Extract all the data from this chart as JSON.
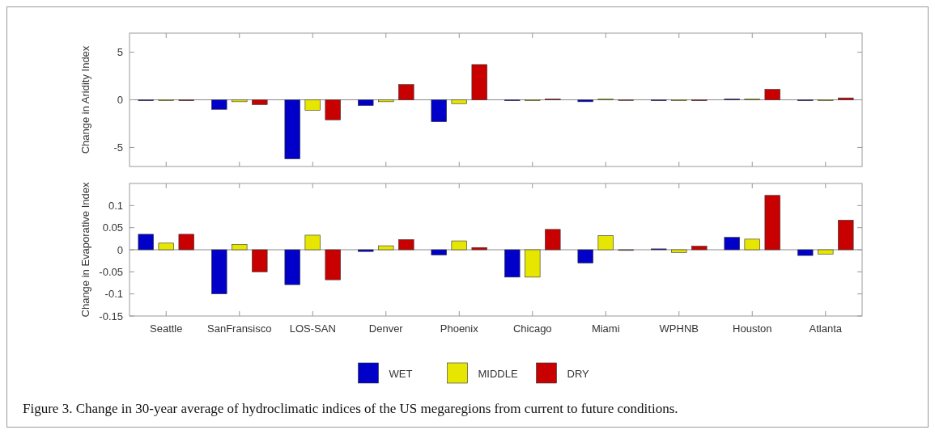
{
  "chart_data": [
    {
      "type": "bar",
      "ylabel": "Change in Aridity Index",
      "categories": [
        null,
        null,
        null,
        null,
        null,
        null,
        null,
        null,
        null,
        null
      ],
      "series": [
        {
          "color": "#0000c8",
          "values": [
            -0.1,
            -1.0,
            -6.2,
            -0.6,
            -2.3,
            -0.1,
            -0.2,
            -0.1,
            0.1,
            -0.1
          ]
        },
        {
          "color": "#e6e600",
          "values": [
            -0.1,
            -0.2,
            -1.1,
            -0.2,
            -0.4,
            -0.1,
            0.1,
            -0.1,
            0.1,
            -0.1
          ]
        },
        {
          "color": "#c80000",
          "values": [
            -0.1,
            -0.5,
            -2.1,
            1.6,
            3.7,
            0.1,
            0,
            -0.1,
            1.1,
            0.2
          ]
        }
      ],
      "ylim": [
        -7,
        7
      ],
      "yticks": [
        -5,
        0,
        5
      ],
      "tick_labels": "y",
      "grid": false,
      "legend": false,
      "ref_lines": [
        {
          "axis": "y",
          "value": 0,
          "color": "#888888"
        }
      ]
    },
    {
      "type": "bar",
      "ylabel": "Change in Evaporative Index",
      "categories": [
        "Seattle",
        "SanFransisco",
        "LOS-SAN",
        "Denver",
        "Phoenix",
        "Chicago",
        "Miami",
        "WPHNB",
        "Houston",
        "Atlanta"
      ],
      "series": [
        {
          "name": "WET",
          "color": "#0000c8",
          "values": [
            0.035,
            -0.1,
            -0.079,
            -0.004,
            -0.012,
            -0.062,
            -0.03,
            0.002,
            0.028,
            -0.013
          ]
        },
        {
          "name": "MIDDLE",
          "color": "#e6e600",
          "values": [
            0.015,
            0.012,
            0.033,
            0.009,
            0.02,
            -0.062,
            0.032,
            -0.006,
            0.024,
            -0.01
          ]
        },
        {
          "name": "DRY",
          "color": "#c80000",
          "values": [
            0.035,
            -0.05,
            -0.068,
            0.023,
            0.005,
            0.046,
            0,
            0.008,
            0.123,
            0.067
          ]
        }
      ],
      "ylim": [
        -0.15,
        0.15
      ],
      "yticks": [
        -0.15,
        -0.1,
        -0.05,
        0,
        0.05,
        0.1
      ],
      "grid": false,
      "legend": "bottom",
      "ref_lines": [
        {
          "axis": "y",
          "value": 0,
          "color": "#888888"
        }
      ],
      "annotations": [
        "Figure 3. Change in 30-year average of hydroclimatic indices of the US megaregions from current to future conditions."
      ]
    }
  ]
}
